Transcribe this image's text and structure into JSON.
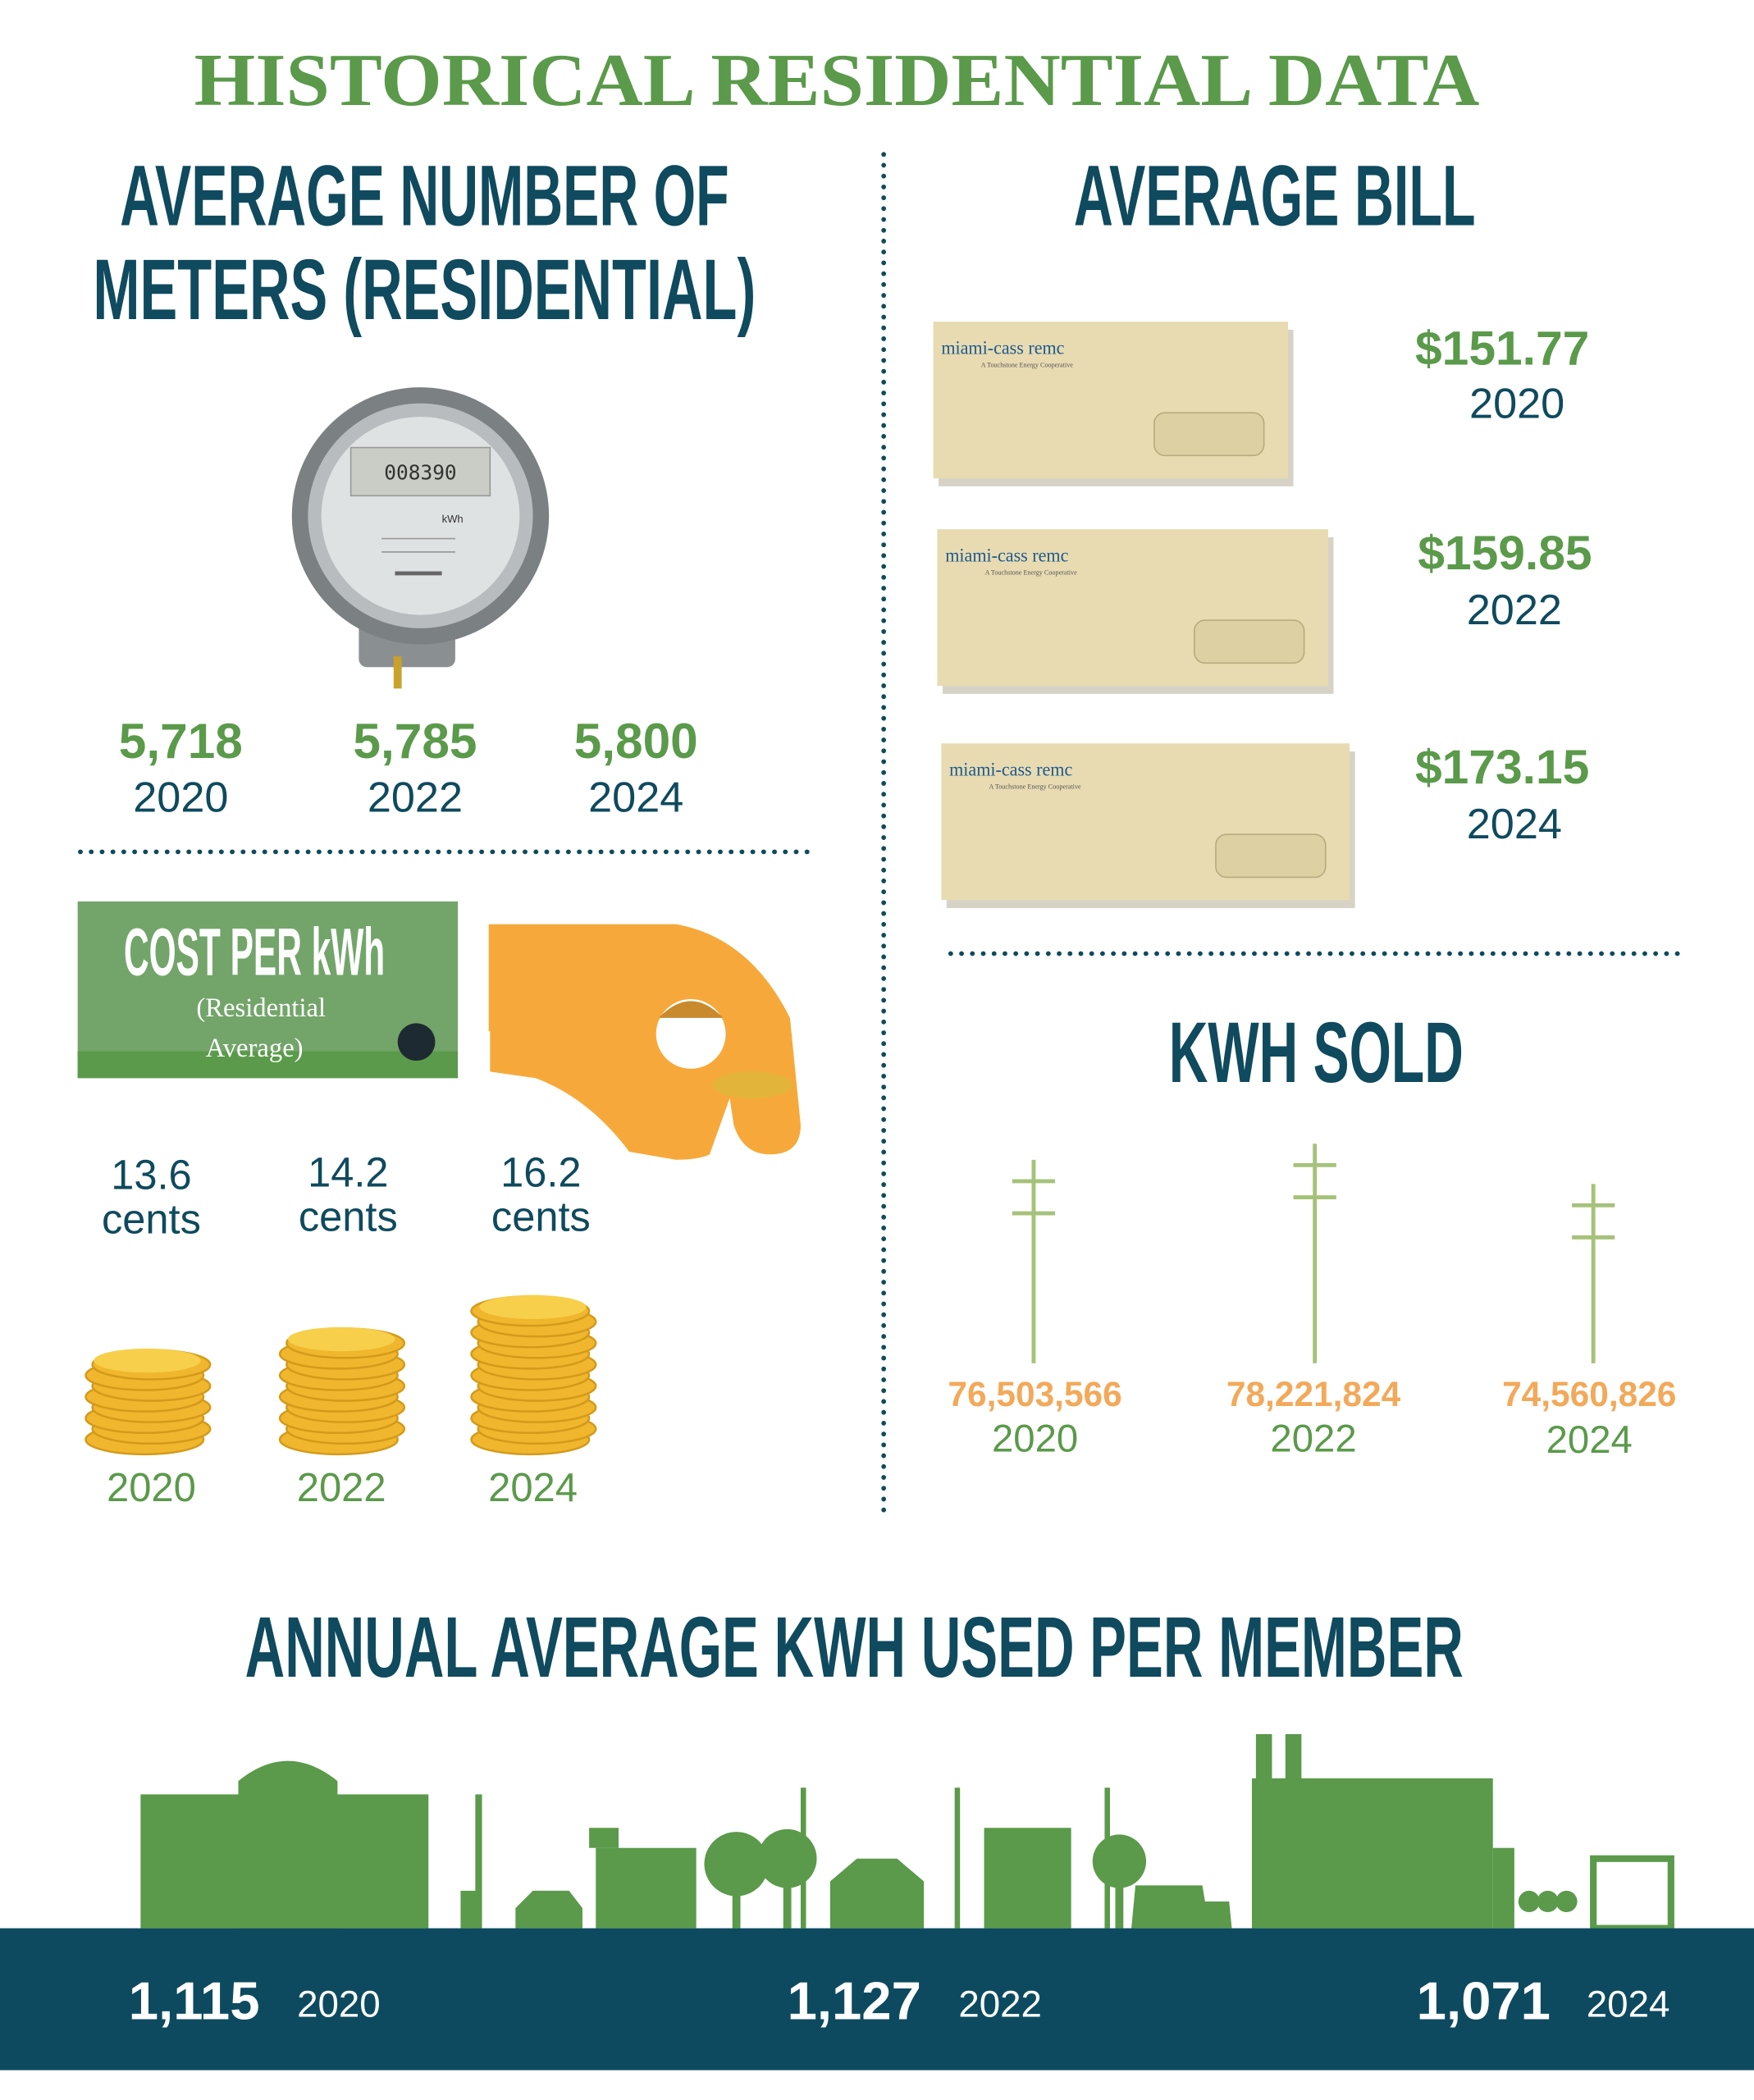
{
  "title": "HISTORICAL RESIDENTIAL DATA",
  "meters": {
    "title_lines": [
      "AVERAGE NUMBER OF",
      "METERS (RESIDENTIAL)"
    ],
    "meter_reading": "008390",
    "meter_unit": "kWh",
    "items": [
      {
        "value": "5,718",
        "year": "2020"
      },
      {
        "value": "5,785",
        "year": "2022"
      },
      {
        "value": "5,800",
        "year": "2024"
      }
    ]
  },
  "cost": {
    "title": "COST PER kWh",
    "subtitle_lines": [
      "(Residential",
      "Average)"
    ],
    "items": [
      {
        "value": "13.6",
        "unit": "cents",
        "year": "2020"
      },
      {
        "value": "14.2",
        "unit": "cents",
        "year": "2022"
      },
      {
        "value": "16.2",
        "unit": "cents",
        "year": "2024"
      }
    ]
  },
  "bill": {
    "title": "AVERAGE BILL",
    "brand": "miami-cass remc",
    "tagline": "A Touchstone Energy Cooperative",
    "items": [
      {
        "value": "$151.77",
        "year": "2020"
      },
      {
        "value": "$159.85",
        "year": "2022"
      },
      {
        "value": "$173.15",
        "year": "2024"
      }
    ]
  },
  "kwh_sold": {
    "title": "KWH SOLD",
    "items": [
      {
        "value": "76,503,566",
        "year": "2020"
      },
      {
        "value": "78,221,824",
        "year": "2022"
      },
      {
        "value": "74,560,826",
        "year": "2024"
      }
    ]
  },
  "annual": {
    "title": "ANNUAL AVERAGE KWH USED PER MEMBER",
    "items": [
      {
        "value": "1,115",
        "year": "2020"
      },
      {
        "value": "1,127",
        "year": "2022"
      },
      {
        "value": "1,071",
        "year": "2024"
      }
    ]
  }
}
